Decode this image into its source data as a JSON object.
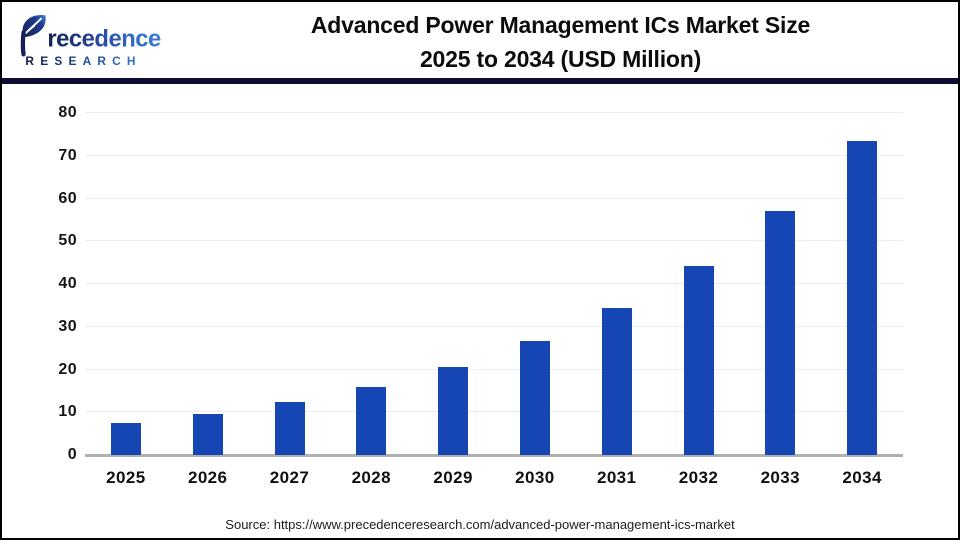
{
  "header": {
    "logo": {
      "brand": "Precedence",
      "brand_after_leaf": "recedence",
      "subtitle": "RESEARCH"
    },
    "title_line1": "Advanced Power Management ICs Market Size",
    "title_line2": "2025 to 2034 (USD Million)"
  },
  "chart_data": {
    "type": "bar",
    "title": "Advanced Power Management ICs Market Size 2025 to 2034 (USD Million)",
    "categories": [
      "2025",
      "2026",
      "2027",
      "2028",
      "2029",
      "2030",
      "2031",
      "2032",
      "2033",
      "2034"
    ],
    "values": [
      7.5,
      9.7,
      12.5,
      16.0,
      20.7,
      26.6,
      34.3,
      44.3,
      57.0,
      73.5
    ],
    "xlabel": "",
    "ylabel": "",
    "ylim": [
      0,
      80
    ],
    "yticks": [
      0,
      10,
      20,
      30,
      40,
      50,
      60,
      70,
      80
    ],
    "grid": true,
    "legend": false,
    "bar_color": "#1546b4"
  },
  "footer": {
    "source": "Source: https://www.precedenceresearch.com/advanced-power-management-ics-market"
  },
  "colors": {
    "bar": "#1546b4",
    "header_rule": "#0d0d33",
    "gridline": "#ececec",
    "axis_line": "#b0b0b0",
    "logo_navy": "#151f54",
    "logo_blue": "#3a7fd8"
  }
}
